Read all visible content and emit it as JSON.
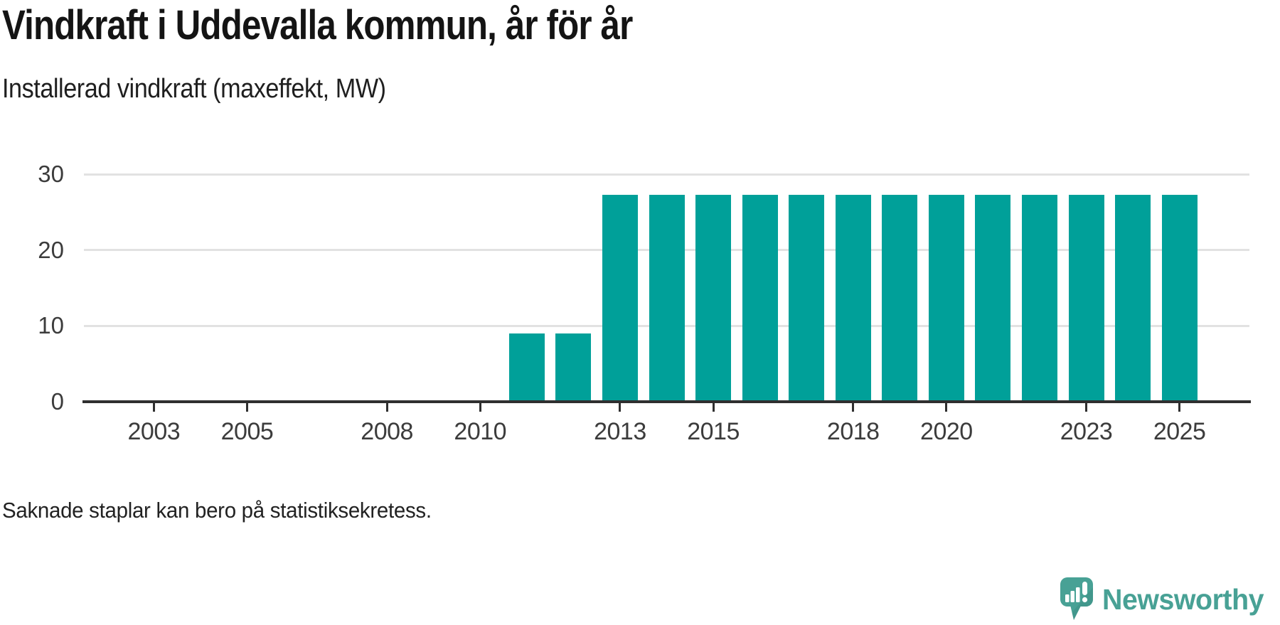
{
  "title": "Vindkraft i Uddevalla kommun, år för år",
  "subtitle": "Installerad vindkraft (maxeffekt, MW)",
  "note": "Saknade staplar kan bero på statistiksekretess.",
  "branding": {
    "name": "Newsworthy",
    "logo_icon": "newsworthy-speech-bubble-bar-chart-icon"
  },
  "colors": {
    "bar": "#00A099",
    "brand": "#48A195",
    "brand_dark": "#3C8C81",
    "grid": "#E2E2E2",
    "axis": "#2F2F2F",
    "title_text": "#141414",
    "tick_label": "#3C3C3C"
  },
  "chart_data": {
    "type": "bar",
    "title": "Vindkraft i Uddevalla kommun, år för år",
    "ylabel": "Installerad vindkraft (maxeffekt, MW)",
    "xlabel": "",
    "unit": "MW",
    "x": [
      2011,
      2012,
      2013,
      2014,
      2015,
      2016,
      2017,
      2018,
      2019,
      2020,
      2021,
      2022,
      2023,
      2024,
      2025
    ],
    "values": [
      9,
      9,
      27.3,
      27.3,
      27.3,
      27.3,
      27.3,
      27.3,
      27.3,
      27.3,
      27.3,
      27.3,
      27.3,
      27.3,
      27.3
    ],
    "years_without_bars": [
      2002,
      2003,
      2004,
      2005,
      2006,
      2007,
      2008,
      2009,
      2010
    ],
    "x_ticks": [
      2003,
      2005,
      2008,
      2010,
      2013,
      2015,
      2018,
      2020,
      2023,
      2025
    ],
    "y_ticks": [
      0,
      10,
      20,
      30
    ],
    "xlim": [
      2001.5,
      2026.5
    ],
    "ylim": [
      0,
      30
    ],
    "grid": true,
    "legend": false,
    "annotation": "Saknade staplar kan bero på statistiksekretess."
  }
}
